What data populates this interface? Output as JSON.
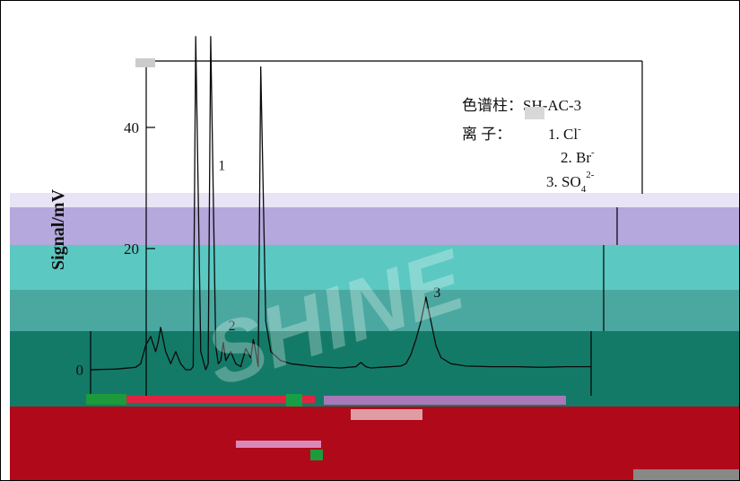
{
  "watermark": "SHINE",
  "chart_data": {
    "type": "line",
    "ylabel": "Signal/mV",
    "yticks": [
      0,
      20,
      40
    ],
    "ylim": [
      -5,
      57
    ],
    "xlim": [
      0,
      10
    ],
    "grid": false,
    "legend": {
      "column_line": "色谱柱：SH-AC-3",
      "ion_prefix": "离    子：",
      "ion_1": "1. Cl",
      "ion_1_sup": "-",
      "ion_2": "2. Br",
      "ion_2_sup": "-",
      "ion_3": "3. SO",
      "ion_3_sub": "4",
      "ion_3_sup": "2-",
      "placement": "top-right"
    },
    "peak_labels": [
      {
        "label": "1",
        "x": 2.55,
        "y": 33
      },
      {
        "label": "2",
        "x": 2.75,
        "y": 6.5
      },
      {
        "label": "3",
        "x": 6.85,
        "y": 12
      }
    ],
    "series": [
      {
        "x": [
          0.0,
          0.5,
          0.9,
          1.0,
          1.1,
          1.2,
          1.3,
          1.35,
          1.4,
          1.5,
          1.6,
          1.7,
          1.8,
          1.9,
          2.0,
          2.05,
          2.1,
          2.2,
          2.3,
          2.35,
          2.4,
          2.5,
          2.55,
          2.6,
          2.65,
          2.7,
          2.8,
          2.9,
          3.0,
          3.1,
          3.2,
          3.25,
          3.3,
          3.35,
          3.4,
          3.5,
          3.6,
          3.8,
          4.0,
          4.5,
          5.0,
          5.3,
          5.4,
          5.5,
          5.6,
          5.8,
          6.0,
          6.2,
          6.3,
          6.4,
          6.5,
          6.6,
          6.7,
          6.8,
          6.9,
          7.0,
          7.2,
          7.5,
          8.0,
          8.5,
          9.0,
          9.5,
          10.0
        ],
        "y": [
          0.0,
          0.1,
          0.4,
          1.0,
          4.0,
          5.5,
          3.0,
          4.5,
          7.0,
          3.0,
          1.0,
          3.0,
          1.0,
          0.0,
          0.0,
          0.5,
          55.0,
          3.0,
          0.0,
          1.0,
          55.0,
          4.0,
          1.0,
          1.5,
          4.5,
          1.5,
          3.0,
          1.0,
          0.5,
          3.5,
          2.0,
          5.0,
          3.0,
          0.5,
          50.0,
          8.0,
          3.0,
          1.5,
          1.0,
          0.5,
          0.3,
          0.5,
          1.2,
          0.5,
          0.3,
          0.4,
          0.5,
          0.6,
          1.0,
          2.5,
          5.0,
          8.0,
          12.0,
          8.0,
          4.0,
          2.0,
          1.0,
          0.6,
          0.5,
          0.5,
          0.4,
          0.5,
          0.5
        ]
      }
    ]
  }
}
